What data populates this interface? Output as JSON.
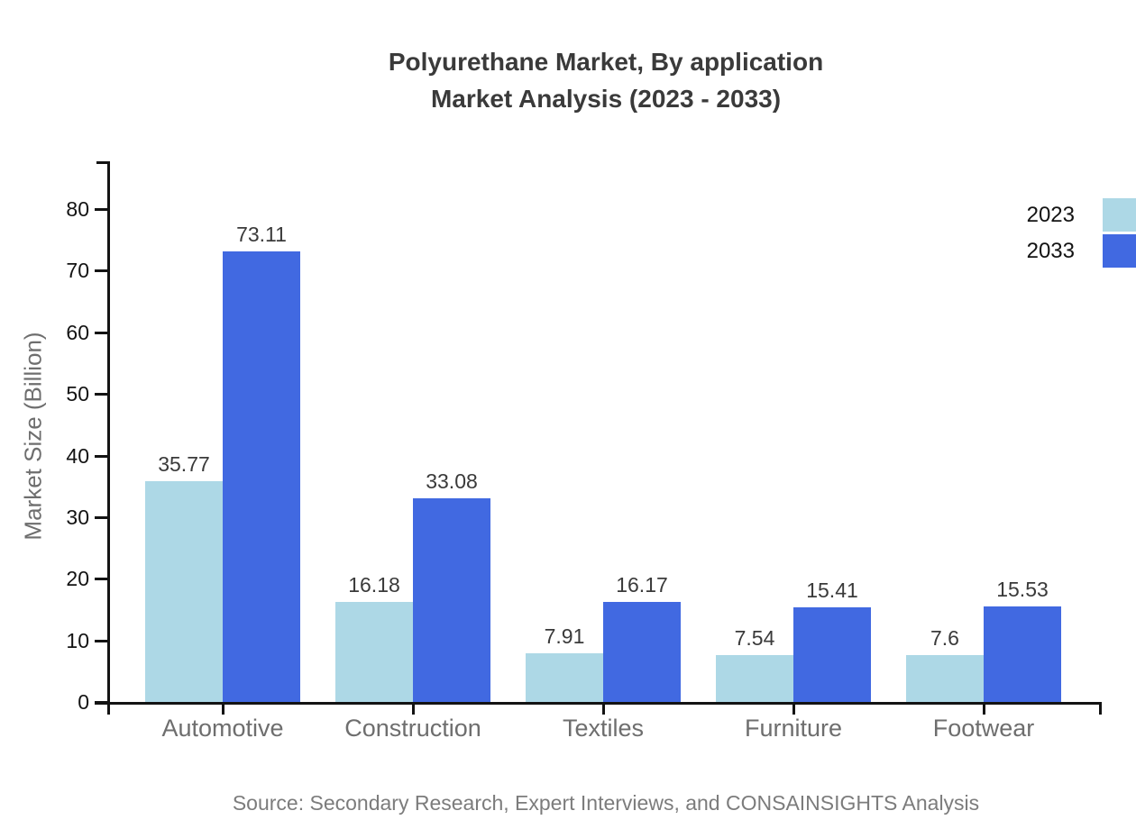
{
  "source_note": "Source: Secondary Research, Expert Interviews, and CONSAINSIGHTS Analysis",
  "chart_data": {
    "type": "bar",
    "title": "Polyurethane Market, By application Market Analysis (2023 - 2033)",
    "title_lines": [
      "Polyurethane Market, By application",
      "Market Analysis (2023 - 2033)"
    ],
    "xlabel": "",
    "ylabel": "Market Size (Billion)",
    "categories": [
      "Automotive",
      "Construction",
      "Textiles",
      "Furniture",
      "Footwear"
    ],
    "series": [
      {
        "name": "2023",
        "color": "#ADD8E6",
        "values": [
          35.77,
          16.18,
          7.91,
          7.54,
          7.6
        ]
      },
      {
        "name": "2033",
        "color": "#4169E1",
        "values": [
          73.11,
          33.08,
          16.17,
          15.41,
          15.53
        ]
      }
    ],
    "yticks": [
      0,
      10,
      20,
      30,
      40,
      50,
      60,
      70,
      80
    ],
    "ylim": [
      0,
      88
    ],
    "grid": false,
    "legend_position": "top-right"
  }
}
